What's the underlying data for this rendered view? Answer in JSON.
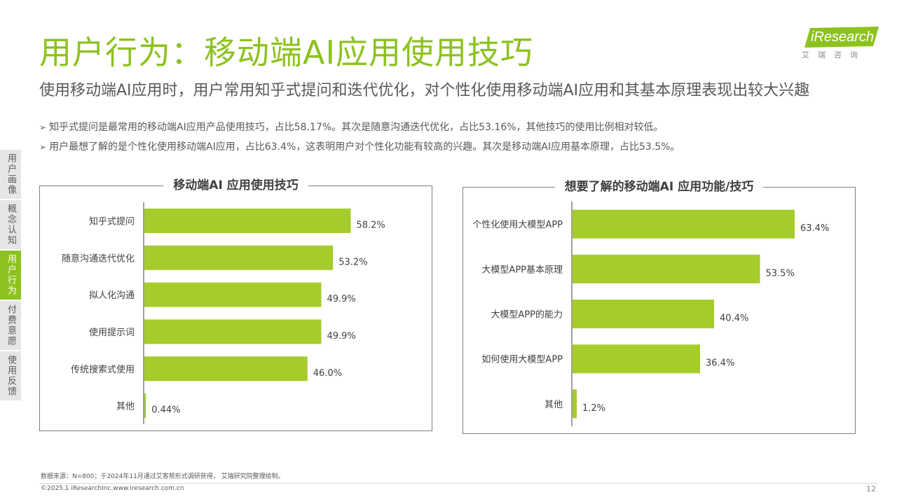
{
  "header": {
    "title": "用户行为：移动端AI应用使用技巧",
    "subtitle": "使用移动端AI应用时，用户常用知乎式提问和迭代优化，对个性化使用移动端AI应用和其基本原理表现出较大兴趣"
  },
  "bullets": [
    "知乎式提问是最常用的移动端AI应用产品使用技巧，占比58.17%。其次是随意沟通迭代优化，占比53.16%，其他技巧的使用比例相对较低。",
    "用户最想了解的是个性化使用移动端AI应用，占比63.4%，这表明用户对个性化功能有较高的兴趣。其次是移动端AI应用基本原理，占比53.5%。"
  ],
  "logo": {
    "brand_prefix": "i",
    "brand_rest": "Research",
    "sub": "艾瑞咨询"
  },
  "side_nav": [
    {
      "label": "用户画像",
      "active": false
    },
    {
      "label": "概念认知",
      "active": false
    },
    {
      "label": "用户行为",
      "active": true
    },
    {
      "label": "付费意愿",
      "active": false
    },
    {
      "label": "使用反馈",
      "active": false
    }
  ],
  "colors": {
    "accent": "#8dc21f",
    "bar": "#a4cc2b"
  },
  "chart_data": [
    {
      "type": "bar",
      "orientation": "horizontal",
      "title": "移动端AI 应用使用技巧",
      "categories": [
        "知乎式提问",
        "随意沟通迭代优化",
        "拟人化沟通",
        "使用提示词",
        "传统搜索式使用",
        "其他"
      ],
      "values": [
        58.2,
        53.2,
        49.9,
        49.9,
        46.0,
        0.44
      ],
      "labels": [
        "58.2%",
        "53.2%",
        "49.9%",
        "49.9%",
        "46.0%",
        "0.44%"
      ],
      "xlim": [
        0,
        100
      ]
    },
    {
      "type": "bar",
      "orientation": "horizontal",
      "title": "想要了解的移动端AI 应用功能/技巧",
      "categories": [
        "个性化使用大模型APP",
        "大模型APP基本原理",
        "大模型APP的能力",
        "如何使用大模型APP",
        "其他"
      ],
      "values": [
        63.4,
        53.5,
        40.4,
        36.4,
        1.2
      ],
      "labels": [
        "63.4%",
        "53.5%",
        "40.4%",
        "36.4%",
        "1.2%"
      ],
      "xlim": [
        0,
        100
      ]
    }
  ],
  "footer": {
    "source": "数据来源：N=800；于2024年11月通过艾客帮形式调研获得， 艾瑞研究院整理绘制。",
    "copyright": "©2025.1 iResearchInc.www.iresearch.com.cn",
    "page_number": "12"
  }
}
